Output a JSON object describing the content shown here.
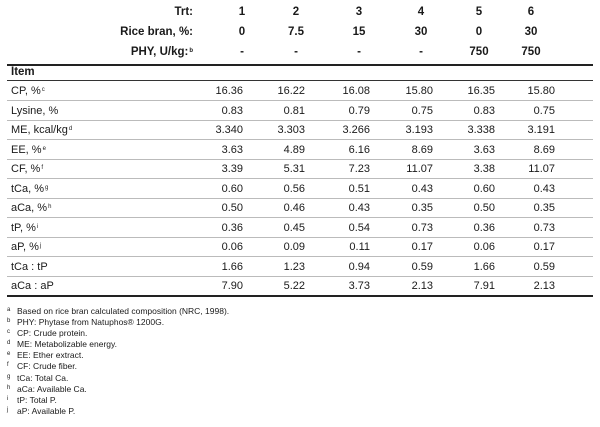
{
  "header": {
    "trt": {
      "label": "Trt:",
      "values": [
        "1",
        "2",
        "3",
        "4",
        "5",
        "6"
      ]
    },
    "rice_bran": {
      "label": "Rice bran, %:",
      "values": [
        "0",
        "7.5",
        "15",
        "30",
        "0",
        "30"
      ]
    },
    "phy": {
      "label": "PHY, U/kg:",
      "label_sup": "b",
      "values": [
        "-",
        "-",
        "-",
        "-",
        "750",
        "750"
      ]
    }
  },
  "item_label": "Item",
  "rows": [
    {
      "label": "CP, %",
      "sup": "c",
      "values": [
        "16.36",
        "16.22",
        "16.08",
        "15.80",
        "16.35",
        "15.80"
      ]
    },
    {
      "label": "Lysine, %",
      "sup": "",
      "values": [
        "0.83",
        "0.81",
        "0.79",
        "0.75",
        "0.83",
        "0.75"
      ]
    },
    {
      "label": "ME, kcal/kg",
      "sup": "d",
      "values": [
        "3.340",
        "3.303",
        "3.266",
        "3.193",
        "3.338",
        "3.191"
      ]
    },
    {
      "label": "EE, %",
      "sup": "e",
      "values": [
        "3.63",
        "4.89",
        "6.16",
        "8.69",
        "3.63",
        "8.69"
      ]
    },
    {
      "label": "CF, %",
      "sup": "f",
      "values": [
        "3.39",
        "5.31",
        "7.23",
        "11.07",
        "3.38",
        "11.07"
      ]
    },
    {
      "label": "tCa, %",
      "sup": "g",
      "values": [
        "0.60",
        "0.56",
        "0.51",
        "0.43",
        "0.60",
        "0.43"
      ]
    },
    {
      "label": "aCa, %",
      "sup": "h",
      "values": [
        "0.50",
        "0.46",
        "0.43",
        "0.35",
        "0.50",
        "0.35"
      ]
    },
    {
      "label": "tP, %",
      "sup": "i",
      "values": [
        "0.36",
        "0.45",
        "0.54",
        "0.73",
        "0.36",
        "0.73"
      ]
    },
    {
      "label": "aP, %",
      "sup": "j",
      "values": [
        "0.06",
        "0.09",
        "0.11",
        "0.17",
        "0.06",
        "0.17"
      ]
    },
    {
      "label": "tCa : tP",
      "sup": "",
      "values": [
        "1.66",
        "1.23",
        "0.94",
        "0.59",
        "1.66",
        "0.59"
      ]
    },
    {
      "label": "aCa : aP",
      "sup": "",
      "values": [
        "7.90",
        "5.22",
        "3.73",
        "2.13",
        "7.91",
        "2.13"
      ]
    }
  ],
  "footnotes": [
    {
      "mark": "a",
      "text": "Based on rice bran calculated composition (NRC, 1998)."
    },
    {
      "mark": "b",
      "text": "PHY: Phytase from Natuphos® 1200G."
    },
    {
      "mark": "c",
      "text": "CP: Crude protein."
    },
    {
      "mark": "d",
      "text": "ME: Metabolizable energy."
    },
    {
      "mark": "e",
      "text": "EE: Ether extract."
    },
    {
      "mark": "f",
      "text": "CF: Crude fiber."
    },
    {
      "mark": "g",
      "text": "tCa: Total Ca."
    },
    {
      "mark": "h",
      "text": "aCa: Available Ca."
    },
    {
      "mark": "i",
      "text": "tP: Total P."
    },
    {
      "mark": "j",
      "text": "aP: Available P."
    }
  ]
}
